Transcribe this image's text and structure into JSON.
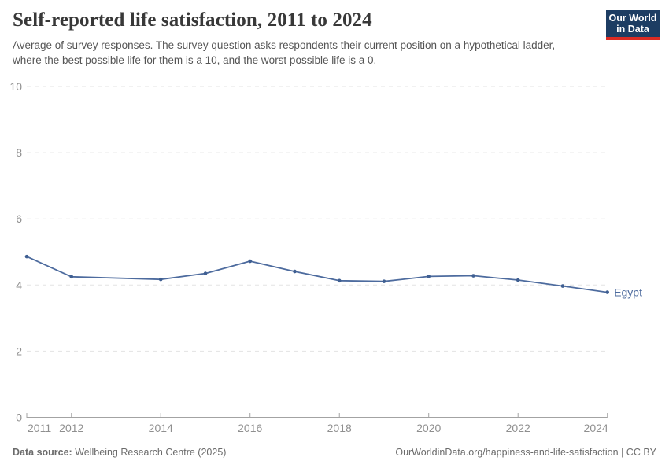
{
  "header": {
    "title": "Self-reported life satisfaction, 2011 to 2024",
    "subtitle": "Average of survey responses. The survey question asks respondents their current position on a hypothetical ladder, where the best possible life for them is a 10, and the worst possible life is a 0.",
    "logo": {
      "line1": "Our World",
      "line2": "in Data",
      "bg_color": "#1d3d63",
      "accent_color": "#dc2b23"
    }
  },
  "chart_data": {
    "type": "line",
    "title": "Self-reported life satisfaction, 2011 to 2024",
    "xlabel": "",
    "ylabel": "",
    "xlim": [
      2011,
      2024
    ],
    "ylim": [
      0,
      10
    ],
    "xticks": [
      2011,
      2012,
      2014,
      2016,
      2018,
      2020,
      2022,
      2024
    ],
    "yticks": [
      0,
      2,
      4,
      6,
      8,
      10
    ],
    "grid": "horizontal-dashed",
    "legend_position": "end-of-line-label",
    "axis_color": "#a3a3a3",
    "grid_color": "#e3e3e3",
    "tick_label_color": "#8f8f8f",
    "series": [
      {
        "name": "Egypt",
        "color": "#4d6b9e",
        "marker_color": "#3f5f92",
        "points": [
          {
            "year": 2011,
            "value": 4.86
          },
          {
            "year": 2012,
            "value": 4.25
          },
          {
            "year": 2014,
            "value": 4.17
          },
          {
            "year": 2015,
            "value": 4.35
          },
          {
            "year": 2016,
            "value": 4.72
          },
          {
            "year": 2017,
            "value": 4.41
          },
          {
            "year": 2018,
            "value": 4.13
          },
          {
            "year": 2019,
            "value": 4.11
          },
          {
            "year": 2020,
            "value": 4.26
          },
          {
            "year": 2021,
            "value": 4.28
          },
          {
            "year": 2022,
            "value": 4.15
          },
          {
            "year": 2023,
            "value": 3.97
          },
          {
            "year": 2024,
            "value": 3.78
          }
        ]
      }
    ]
  },
  "footer": {
    "source_label": "Data source:",
    "source_value": " Wellbeing Research Centre (2025)",
    "link_text": "OurWorldinData.org/happiness-and-life-satisfaction",
    "separator": " | ",
    "license_text": "CC BY"
  }
}
